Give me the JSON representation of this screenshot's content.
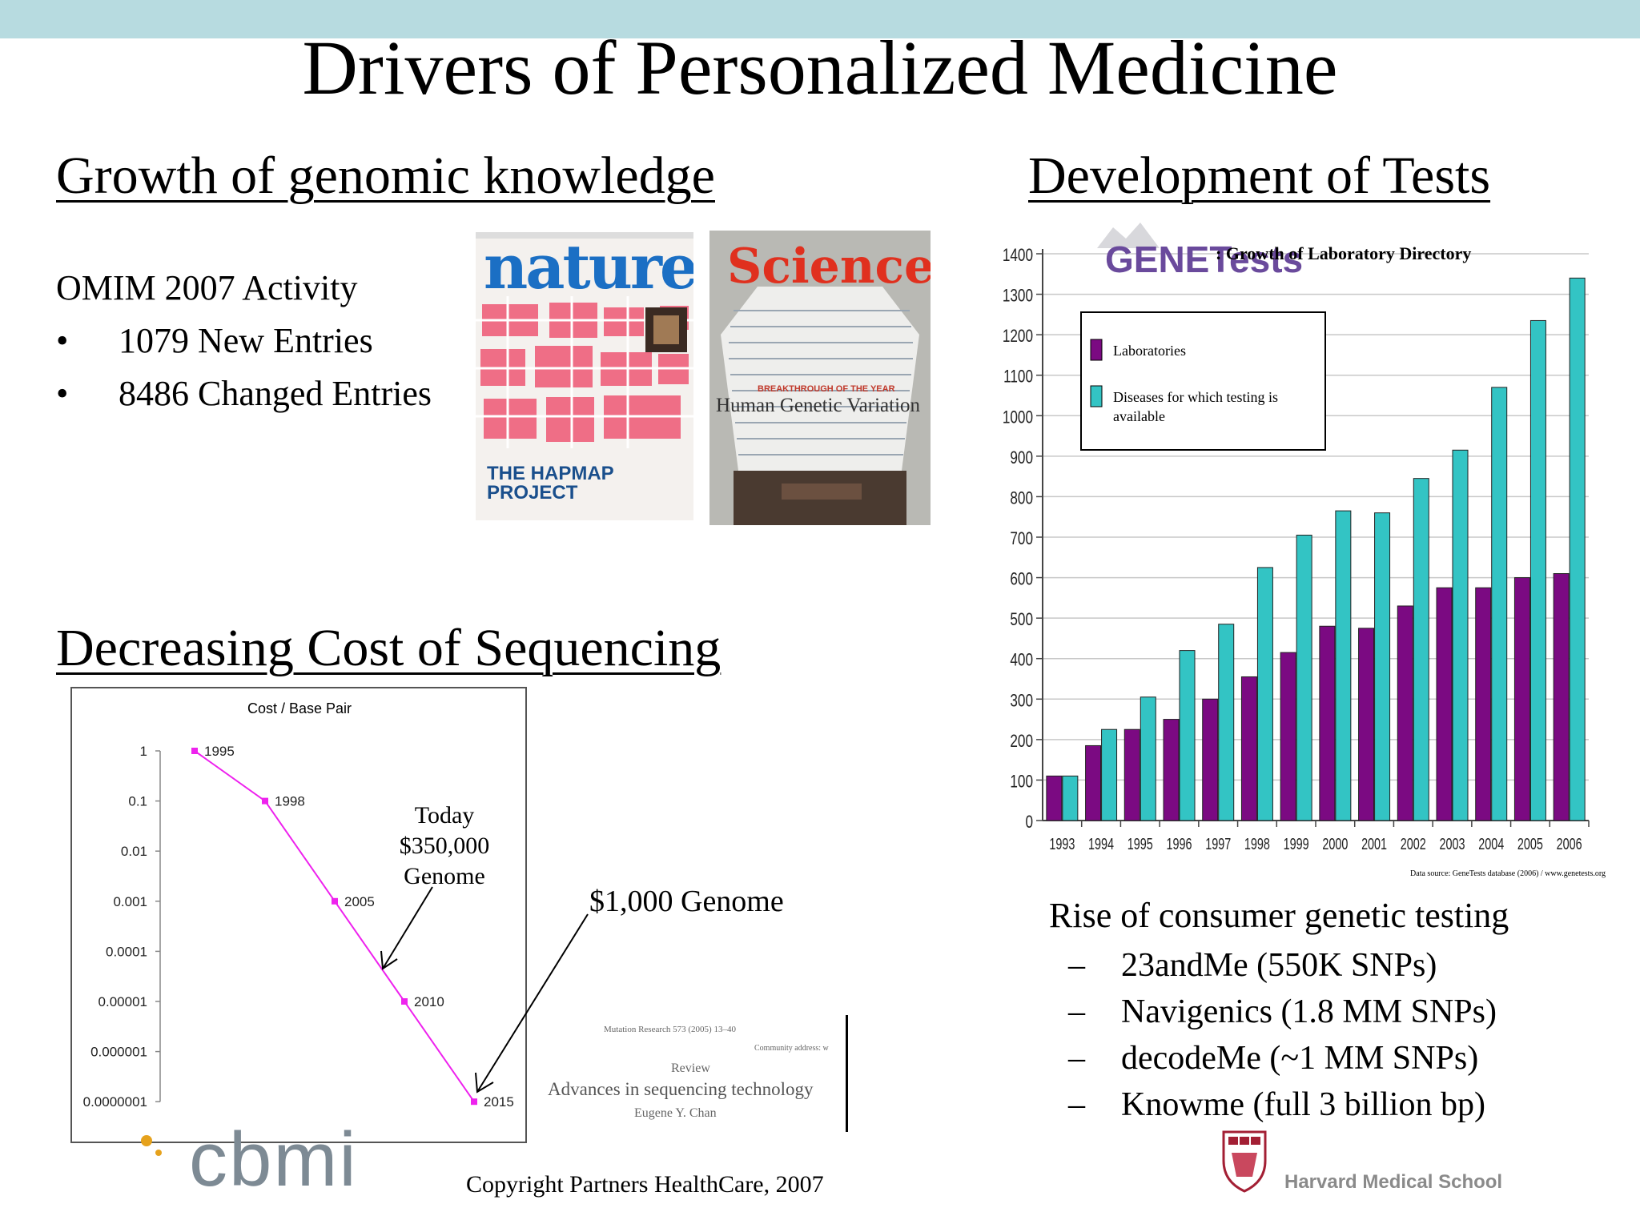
{
  "slide": {
    "title": "Drivers of Personalized Medicine",
    "copyright": "Copyright Partners HealthCare, 2007"
  },
  "genomic": {
    "heading": "Growth of genomic  knowledge",
    "omim_title": "OMIM 2007 Activity",
    "bullets": [
      {
        "marker": "•",
        "text": "1079 New Entries"
      },
      {
        "marker": "•",
        "text": "8486 Changed Entries"
      }
    ],
    "nature_cover": {
      "masthead": "nature",
      "headline_1": "THE HAPMAP",
      "headline_2": "PROJECT"
    },
    "science_cover": {
      "masthead": "Science",
      "kicker": "BREAKTHROUGH OF THE YEAR",
      "headline": "Human Genetic Variation"
    }
  },
  "tests": {
    "heading": "Development of Tests",
    "logo_text": "GENETests",
    "chart_title": ": Growth of Laboratory Directory",
    "source": "Data source: GeneTests database (2006) / www.genetests.org"
  },
  "sequencing": {
    "heading": "Decreasing Cost of Sequencing",
    "today_lines": [
      "Today",
      "$350,000",
      "Genome"
    ],
    "thousand_genome": "$1,000 Genome",
    "paper": {
      "journal": "Mutation Research 573 (2005) 13–40",
      "address": "Community address: w",
      "type": "Review",
      "title": "Advances in sequencing technology",
      "author": "Eugene Y. Chan"
    }
  },
  "consumer": {
    "heading": "Rise of consumer genetic testing",
    "items": [
      {
        "dash": "–",
        "text": "23andMe (550K SNPs)"
      },
      {
        "dash": "–",
        "text": "Navigenics (1.8 MM SNPs)"
      },
      {
        "dash": "–",
        "text": "decodeMe (~1 MM SNPs)"
      },
      {
        "dash": "–",
        "text": "Knowme (full 3 billion bp)"
      }
    ]
  },
  "logos": {
    "cbmi": "cbmi",
    "harvard": "Harvard Medical School"
  },
  "colors": {
    "top_bar": "#b7dbe0",
    "laboratories": "#7b0a82",
    "diseases": "#33c4c4",
    "cost_line": "#ee22ee"
  },
  "chart_data": [
    {
      "type": "bar",
      "title": ": Growth of Laboratory Directory",
      "categories": [
        "1993",
        "1994",
        "1995",
        "1996",
        "1997",
        "1998",
        "1999",
        "2000",
        "2001",
        "2002",
        "2003",
        "2004",
        "2005",
        "2006"
      ],
      "series": [
        {
          "name": "Laboratories",
          "values": [
            110,
            185,
            225,
            250,
            300,
            355,
            415,
            480,
            475,
            530,
            575,
            575,
            600,
            610
          ]
        },
        {
          "name": "Diseases for which testing is available",
          "values": [
            110,
            225,
            305,
            420,
            485,
            625,
            705,
            765,
            760,
            845,
            915,
            1070,
            1235,
            1340
          ]
        }
      ],
      "yticks": [
        "0",
        "100",
        "200",
        "300",
        "400",
        "500",
        "600",
        "700",
        "800",
        "900",
        "1000",
        "1100",
        "1200",
        "1300",
        "1400"
      ],
      "ylim": [
        0,
        1400
      ],
      "grid": true,
      "legend": "top-left"
    },
    {
      "type": "line",
      "title": "Cost / Base Pair",
      "yscale": "log",
      "yticks": [
        "1",
        "0.1",
        "0.01",
        "0.001",
        "0.0001",
        "0.00001",
        "0.000001",
        "0.0000001"
      ],
      "points": [
        {
          "label": "1995",
          "y": 1
        },
        {
          "label": "1998",
          "y": 0.1
        },
        {
          "label": "2005",
          "y": 0.001
        },
        {
          "label": "2010",
          "y": 1e-05
        },
        {
          "label": "2015",
          "y": 1e-07
        }
      ],
      "grid": false
    }
  ]
}
